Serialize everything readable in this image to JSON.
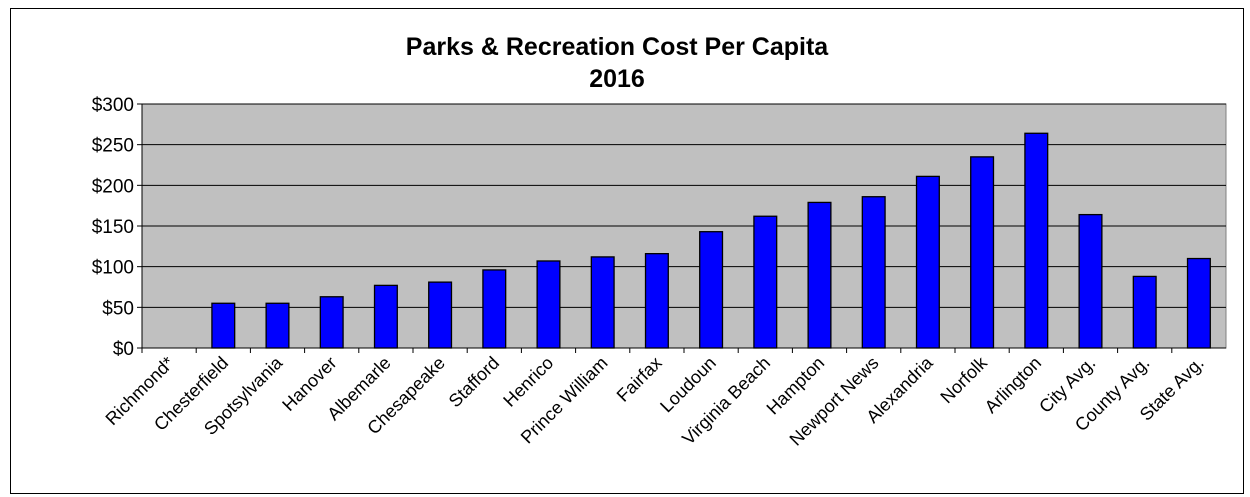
{
  "chart_data": {
    "type": "bar",
    "title": "Parks & Recreation Cost Per Capita",
    "subtitle": "2016",
    "xlabel": "",
    "ylabel": "",
    "ylim": [
      0,
      300
    ],
    "yticks": [
      0,
      50,
      100,
      150,
      200,
      250,
      300
    ],
    "ytick_labels": [
      "$0",
      "$50",
      "$100",
      "$150",
      "$200",
      "$250",
      "$300"
    ],
    "grid": true,
    "legend": "none",
    "plot_background": "#c0c0c0",
    "bar_color": "#0000ff",
    "categories": [
      "Richmond*",
      "Chesterfield",
      "Spotsylvania",
      "Hanover",
      "Albemarle",
      "Chesapeake",
      "Stafford",
      "Henrico",
      "Prince William",
      "Fairfax",
      "Loudoun",
      "Virginia Beach",
      "Hampton",
      "Newport News",
      "Alexandria",
      "Norfolk",
      "Arlington",
      "City Avg.",
      "County Avg.",
      "State Avg."
    ],
    "values": [
      0,
      55,
      55,
      63,
      77,
      81,
      96,
      107,
      112,
      116,
      143,
      162,
      179,
      186,
      211,
      235,
      264,
      164,
      88,
      110
    ]
  }
}
